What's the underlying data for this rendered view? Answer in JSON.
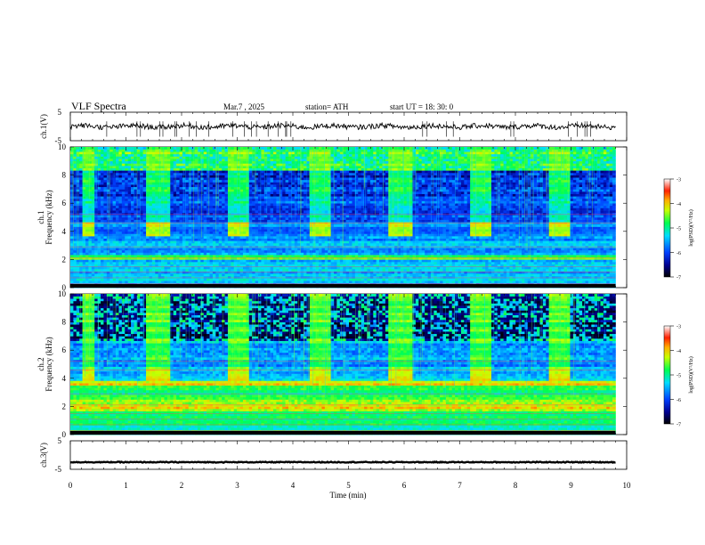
{
  "header": {
    "title": "VLF  Spectra",
    "date": "Mar.7  , 2025",
    "station": "station= ATH",
    "start": "start  UT  =   18: 30: 0"
  },
  "colorbar": {
    "label": "log(PSD)(V²/Hz)",
    "ticks": [
      "-3",
      "-4",
      "-5",
      "-6",
      "-7"
    ]
  },
  "chart_data": [
    {
      "type": "line",
      "name": "ch1-voltage",
      "ylabel": "ch.1(V)",
      "ylim": [
        -5,
        5
      ],
      "y_ticks": [
        "5",
        "-5"
      ],
      "x": [
        0,
        10
      ],
      "approx_level": 0,
      "xlim": [
        0,
        10
      ]
    },
    {
      "type": "heatmap",
      "name": "ch1-spectrogram",
      "ylabel": "ch.1\nFrequency (kHz)",
      "ylim": [
        0,
        10
      ],
      "y_ticks": [
        "0",
        "2",
        "4",
        "6",
        "8",
        "10"
      ],
      "xlim": [
        0,
        10
      ],
      "data_end_min": 9.8,
      "quiet_intervals_min": [
        [
          0.2,
          0.4
        ],
        [
          1.35,
          1.75
        ],
        [
          2.8,
          3.2
        ],
        [
          4.25,
          4.65
        ],
        [
          5.7,
          6.1
        ],
        [
          7.15,
          7.55
        ],
        [
          8.6,
          8.95
        ]
      ],
      "color_scale": "log(PSD)(V²/Hz)",
      "color_range": [
        -7,
        -3
      ]
    },
    {
      "type": "heatmap",
      "name": "ch2-spectrogram",
      "ylabel": "ch.2\nFrequency (kHz)",
      "ylim": [
        0,
        10
      ],
      "y_ticks": [
        "0",
        "2",
        "4",
        "6",
        "8",
        "10"
      ],
      "xlim": [
        0,
        10
      ],
      "data_end_min": 9.8,
      "quiet_intervals_min": [
        [
          0.2,
          0.4
        ],
        [
          1.35,
          1.75
        ],
        [
          2.8,
          3.2
        ],
        [
          4.25,
          4.65
        ],
        [
          5.7,
          6.1
        ],
        [
          7.15,
          7.55
        ],
        [
          8.6,
          8.95
        ]
      ],
      "color_scale": "log(PSD)(V²/Hz)",
      "color_range": [
        -7,
        -3
      ]
    },
    {
      "type": "line",
      "name": "ch3-voltage",
      "ylabel": "ch.3(V)",
      "ylim": [
        -5,
        5
      ],
      "y_ticks": [
        "5",
        "-5"
      ],
      "approx_level": -2.5,
      "xlim": [
        0,
        10
      ]
    }
  ],
  "x_axis": {
    "label": "Time  (min)",
    "ticks": [
      "0",
      "1",
      "2",
      "3",
      "4",
      "5",
      "6",
      "7",
      "8",
      "9",
      "10"
    ]
  }
}
